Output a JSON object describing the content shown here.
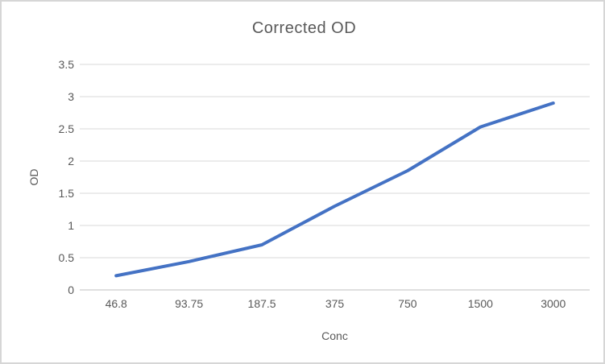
{
  "chart_data": {
    "type": "line",
    "title": "Corrected OD",
    "xlabel": "Conc",
    "ylabel": "OD",
    "categories": [
      "46.8",
      "93.75",
      "187.5",
      "375",
      "750",
      "1500",
      "3000"
    ],
    "series": [
      {
        "name": "Corrected OD",
        "values": [
          0.22,
          0.44,
          0.7,
          1.3,
          1.85,
          2.53,
          2.9
        ]
      }
    ],
    "ylim": [
      0,
      3.5
    ],
    "ytick_step": 0.5,
    "grid": true,
    "legend_position": "none",
    "colors": {
      "line": "#4472C4",
      "gridline": "#D9D9D9",
      "axis_line": "#BFBFBF",
      "text": "#595959",
      "border": "#D6D6D6",
      "background": "#FFFFFF"
    }
  }
}
